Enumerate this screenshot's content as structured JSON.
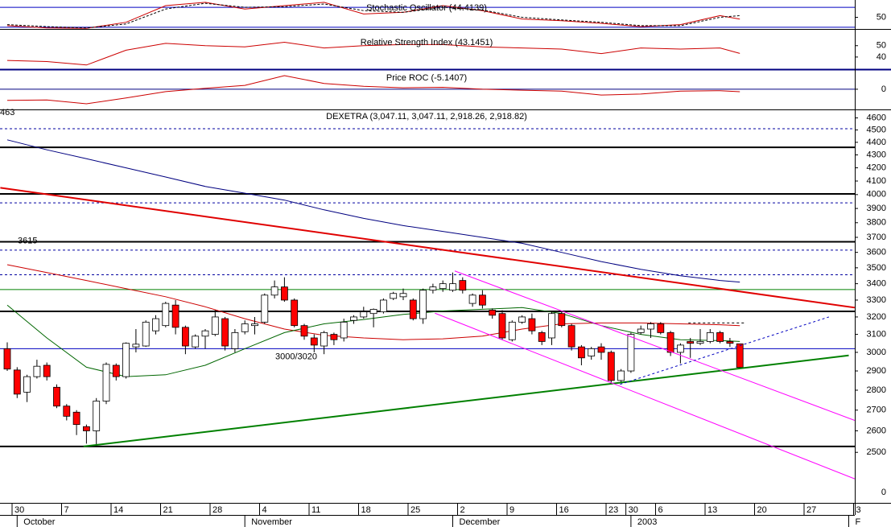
{
  "chart_data": [
    {
      "type": "line",
      "title": "Stochastic Oscillator (44.4139)",
      "ylim": [
        15,
        102
      ],
      "yticks": [
        50
      ],
      "reference": [
        20,
        80
      ],
      "reference_color": "#0000c0",
      "x": [
        0,
        4,
        8,
        12,
        16,
        20,
        24,
        28,
        32,
        36,
        40,
        44,
        48,
        52,
        56,
        60,
        64,
        68,
        72,
        74
      ],
      "series": [
        {
          "color": "#cc0000",
          "dashed": false,
          "values": [
            25,
            18,
            17,
            35,
            85,
            95,
            75,
            85,
            95,
            60,
            65,
            85,
            70,
            45,
            40,
            32,
            22,
            28,
            55,
            44.41
          ]
        },
        {
          "color": "#000000",
          "dashed": true,
          "values": [
            28,
            22,
            18,
            30,
            75,
            92,
            80,
            82,
            90,
            70,
            65,
            80,
            72,
            50,
            42,
            35,
            25,
            25,
            50,
            55
          ]
        }
      ]
    },
    {
      "type": "line",
      "title": "Relative Strength Index (43.1451)",
      "ylim": [
        30,
        64
      ],
      "yticks": [
        40,
        50
      ],
      "reference": [],
      "reference_color": "#0000c0",
      "x": [
        0,
        4,
        8,
        12,
        16,
        20,
        24,
        28,
        32,
        36,
        40,
        44,
        48,
        52,
        56,
        60,
        64,
        68,
        72,
        74
      ],
      "series": [
        {
          "color": "#cc0000",
          "dashed": false,
          "values": [
            37,
            36,
            33,
            46,
            52,
            50,
            49,
            53,
            48,
            50,
            51,
            51,
            49,
            48,
            47,
            43,
            48,
            47,
            48,
            43.15
          ]
        }
      ]
    },
    {
      "type": "line",
      "title": "Price ROC (-5.1407)",
      "ylim": [
        -40,
        38
      ],
      "yticks": [
        0
      ],
      "reference": [
        0
      ],
      "reference_color": "#000080",
      "x": [
        0,
        4,
        8,
        12,
        16,
        20,
        24,
        28,
        32,
        36,
        40,
        44,
        48,
        52,
        56,
        60,
        64,
        68,
        72,
        74
      ],
      "series": [
        {
          "color": "#cc0000",
          "dashed": false,
          "values": [
            -23,
            -22,
            -30,
            -18,
            -5,
            2,
            8,
            28,
            12,
            6,
            3,
            4,
            0,
            -2,
            -4,
            -12,
            -10,
            -4,
            -3,
            -5.14
          ]
        }
      ]
    },
    {
      "type": "candlestick",
      "title": "DEXETRA (3,047.11, 3,047.11, 2,918.26, 2,918.82)",
      "log": true,
      "ylim": [
        2280,
        4665
      ],
      "yticks": [
        2500,
        2600,
        2700,
        2800,
        2900,
        3000,
        3100,
        3200,
        3300,
        3400,
        3500,
        3600,
        3700,
        3800,
        3900,
        4000,
        4100,
        4200,
        4300,
        4400,
        4500,
        4600
      ],
      "bottom_axis_label": "0",
      "annotations": [
        "463"
      ],
      "categories": [
        "30",
        null,
        null,
        null,
        null,
        "7",
        null,
        null,
        null,
        null,
        "14",
        null,
        null,
        null,
        null,
        "21",
        null,
        null,
        null,
        null,
        "28",
        null,
        null,
        null,
        null,
        "4",
        null,
        null,
        null,
        null,
        "11",
        null,
        null,
        null,
        null,
        "18",
        null,
        null,
        null,
        null,
        "25",
        null,
        null,
        null,
        null,
        "2",
        null,
        null,
        null,
        null,
        "9",
        null,
        null,
        null,
        null,
        "16",
        null,
        null,
        null,
        null,
        "23",
        null,
        "30",
        null,
        null,
        "6",
        null,
        null,
        null,
        null,
        "13",
        null,
        null,
        null,
        null,
        "20",
        null,
        null,
        null,
        null,
        "27",
        null,
        null,
        null,
        null,
        "3"
      ],
      "months": [
        "October",
        "November",
        "December",
        "2003",
        "F"
      ],
      "open": [
        3020,
        2905,
        2790,
        2870,
        2930,
        2815,
        2720,
        2690,
        2620,
        2600,
        2745,
        2930,
        2870,
        3030,
        3035,
        3120,
        3150,
        3270,
        3140,
        3030,
        3090,
        3100,
        3190,
        3020,
        3115,
        3150,
        3170,
        3330,
        3380,
        3300,
        3150,
        3080,
        3035,
        3100,
        3080,
        3180,
        3200,
        3220,
        3230,
        3310,
        3320,
        3300,
        3190,
        3360,
        3370,
        3360,
        3420,
        3280,
        3330,
        3240,
        3220,
        3070,
        3170,
        3190,
        3110,
        3080,
        3220,
        3150,
        3030,
        2980,
        3030,
        3000,
        2850,
        2900,
        3110,
        3130,
        3160,
        3110,
        3000,
        3060,
        3050,
        3060,
        3110,
        3060,
        3047.11,
        null,
        null,
        null,
        null,
        null,
        null,
        null,
        null,
        null,
        null,
        null
      ],
      "high": [
        3055,
        2920,
        2880,
        2960,
        2945,
        2830,
        2730,
        2700,
        2630,
        2760,
        2945,
        2940,
        3055,
        3130,
        3180,
        3210,
        3290,
        3300,
        3150,
        3100,
        3130,
        3240,
        3200,
        3130,
        3180,
        3200,
        3340,
        3420,
        3440,
        3310,
        3160,
        3100,
        3120,
        3110,
        3190,
        3210,
        3260,
        3250,
        3310,
        3350,
        3370,
        3310,
        3370,
        3400,
        3420,
        3470,
        3440,
        3340,
        3360,
        3250,
        3240,
        3180,
        3210,
        3220,
        3120,
        3230,
        3230,
        3160,
        3040,
        3030,
        3050,
        3010,
        2910,
        3110,
        3150,
        3170,
        3170,
        3120,
        3050,
        3080,
        3130,
        3130,
        3120,
        3080,
        3047.11,
        null,
        null,
        null,
        null,
        null,
        null,
        null,
        null,
        null,
        null,
        null
      ],
      "low": [
        2900,
        2760,
        2740,
        2860,
        2850,
        2710,
        2650,
        2580,
        2540,
        2530,
        2730,
        2850,
        2860,
        3000,
        3030,
        3100,
        3140,
        3100,
        2990,
        3020,
        3020,
        3090,
        3010,
        3000,
        3100,
        3100,
        3160,
        3310,
        3290,
        3140,
        3070,
        3000,
        2990,
        3040,
        3060,
        3160,
        3190,
        3140,
        3220,
        3300,
        3300,
        3180,
        3160,
        3340,
        3350,
        3350,
        3340,
        3260,
        3250,
        3190,
        3070,
        3060,
        3160,
        3100,
        3040,
        3040,
        3140,
        3010,
        2930,
        2960,
        2960,
        2830,
        2840,
        2890,
        3100,
        3080,
        3100,
        2980,
        2940,
        2970,
        3040,
        3050,
        3050,
        3030,
        2918.26,
        null,
        null,
        null,
        null,
        null,
        null,
        null,
        null,
        null,
        null,
        null
      ],
      "close": [
        2910,
        2780,
        2870,
        2925,
        2870,
        2720,
        2670,
        2630,
        2600,
        2745,
        2935,
        2870,
        3050,
        3045,
        3170,
        3190,
        3280,
        3140,
        3035,
        3090,
        3120,
        3200,
        3035,
        3110,
        3160,
        3160,
        3330,
        3380,
        3300,
        3150,
        3090,
        3040,
        3110,
        3070,
        3170,
        3200,
        3230,
        3245,
        3300,
        3340,
        3340,
        3190,
        3360,
        3380,
        3400,
        3400,
        3360,
        3330,
        3270,
        3210,
        3080,
        3170,
        3200,
        3120,
        3060,
        3220,
        3150,
        3030,
        2970,
        3020,
        3000,
        2850,
        2900,
        3100,
        3130,
        3160,
        3110,
        3000,
        3040,
        3050,
        3060,
        3110,
        3060,
        3050,
        2918.82,
        null,
        null,
        null,
        null,
        null,
        null,
        null,
        null,
        null,
        null,
        null
      ],
      "up_color": "#ffffff",
      "down_color": "#ff0000",
      "overlay_x": [
        0,
        4,
        8,
        12,
        16,
        20,
        24,
        28,
        32,
        36,
        40,
        44,
        48,
        52,
        56,
        60,
        64,
        68,
        72,
        74
      ],
      "overlays": [
        {
          "color": "#000080",
          "values": [
            4420,
            4340,
            4270,
            4200,
            4130,
            4060,
            4010,
            3960,
            3890,
            3830,
            3780,
            3740,
            3700,
            3660,
            3600,
            3540,
            3490,
            3450,
            3420,
            3410
          ]
        },
        {
          "color": "#cc0000",
          "values": [
            3520,
            3470,
            3420,
            3370,
            3320,
            3260,
            3190,
            3130,
            3095,
            3080,
            3070,
            3075,
            3090,
            3130,
            3160,
            3165,
            3165,
            3160,
            3155,
            3150
          ]
        },
        {
          "color": "#006600",
          "values": [
            3270,
            3080,
            2920,
            2870,
            2880,
            2930,
            3020,
            3110,
            3160,
            3185,
            3215,
            3235,
            3245,
            3255,
            3220,
            3150,
            3100,
            3070,
            3065,
            3060
          ]
        }
      ],
      "levels": [
        {
          "value": 4510,
          "color": "#0000a0",
          "style": "dashed"
        },
        {
          "value": 4360,
          "color": "#000000",
          "style": "thick"
        },
        {
          "value": 4005,
          "color": "#000000",
          "style": "thick"
        },
        {
          "value": 3940,
          "color": "#0000a0",
          "style": "dashed"
        },
        {
          "value": 3670,
          "color": "#000000",
          "style": "thick"
        },
        {
          "value": 3615,
          "color": "#0000a0",
          "style": "dashed",
          "labeled": true
        },
        {
          "value": 3456,
          "color": "#0000a0",
          "style": "dashed"
        },
        {
          "value": 3364,
          "color": "#008000",
          "style": "thin"
        },
        {
          "value": 3233,
          "color": "#000000",
          "style": "thick"
        },
        {
          "value": 3020,
          "color": "#0000c0",
          "style": "thin",
          "label": "3000/3020"
        },
        {
          "value": 2527,
          "color": "#000000",
          "style": "thick"
        }
      ],
      "trendlines": [
        {
          "color": "#e00000",
          "style": "thick",
          "start": [
            -0.7,
            4050
          ],
          "end": [
            85.6,
            3255
          ]
        },
        {
          "color": "#008000",
          "style": "thick",
          "start": [
            7.7,
            2527
          ],
          "end": [
            85,
            2983
          ]
        },
        {
          "color": "#ff00ff",
          "style": "thin",
          "start": [
            45.2,
            3480
          ],
          "end": [
            85.6,
            2650
          ]
        },
        {
          "color": "#ff00ff",
          "style": "thin",
          "start": [
            43.2,
            3222
          ],
          "end": [
            85.6,
            2382
          ]
        },
        {
          "color": "#0000c0",
          "style": "dashed",
          "start": [
            61.9,
            2830
          ],
          "end": [
            83,
            3200
          ]
        },
        {
          "color": "#000000",
          "style": "dashed",
          "start": [
            68.8,
            3165
          ],
          "end": [
            74.5,
            3165
          ]
        }
      ]
    }
  ]
}
